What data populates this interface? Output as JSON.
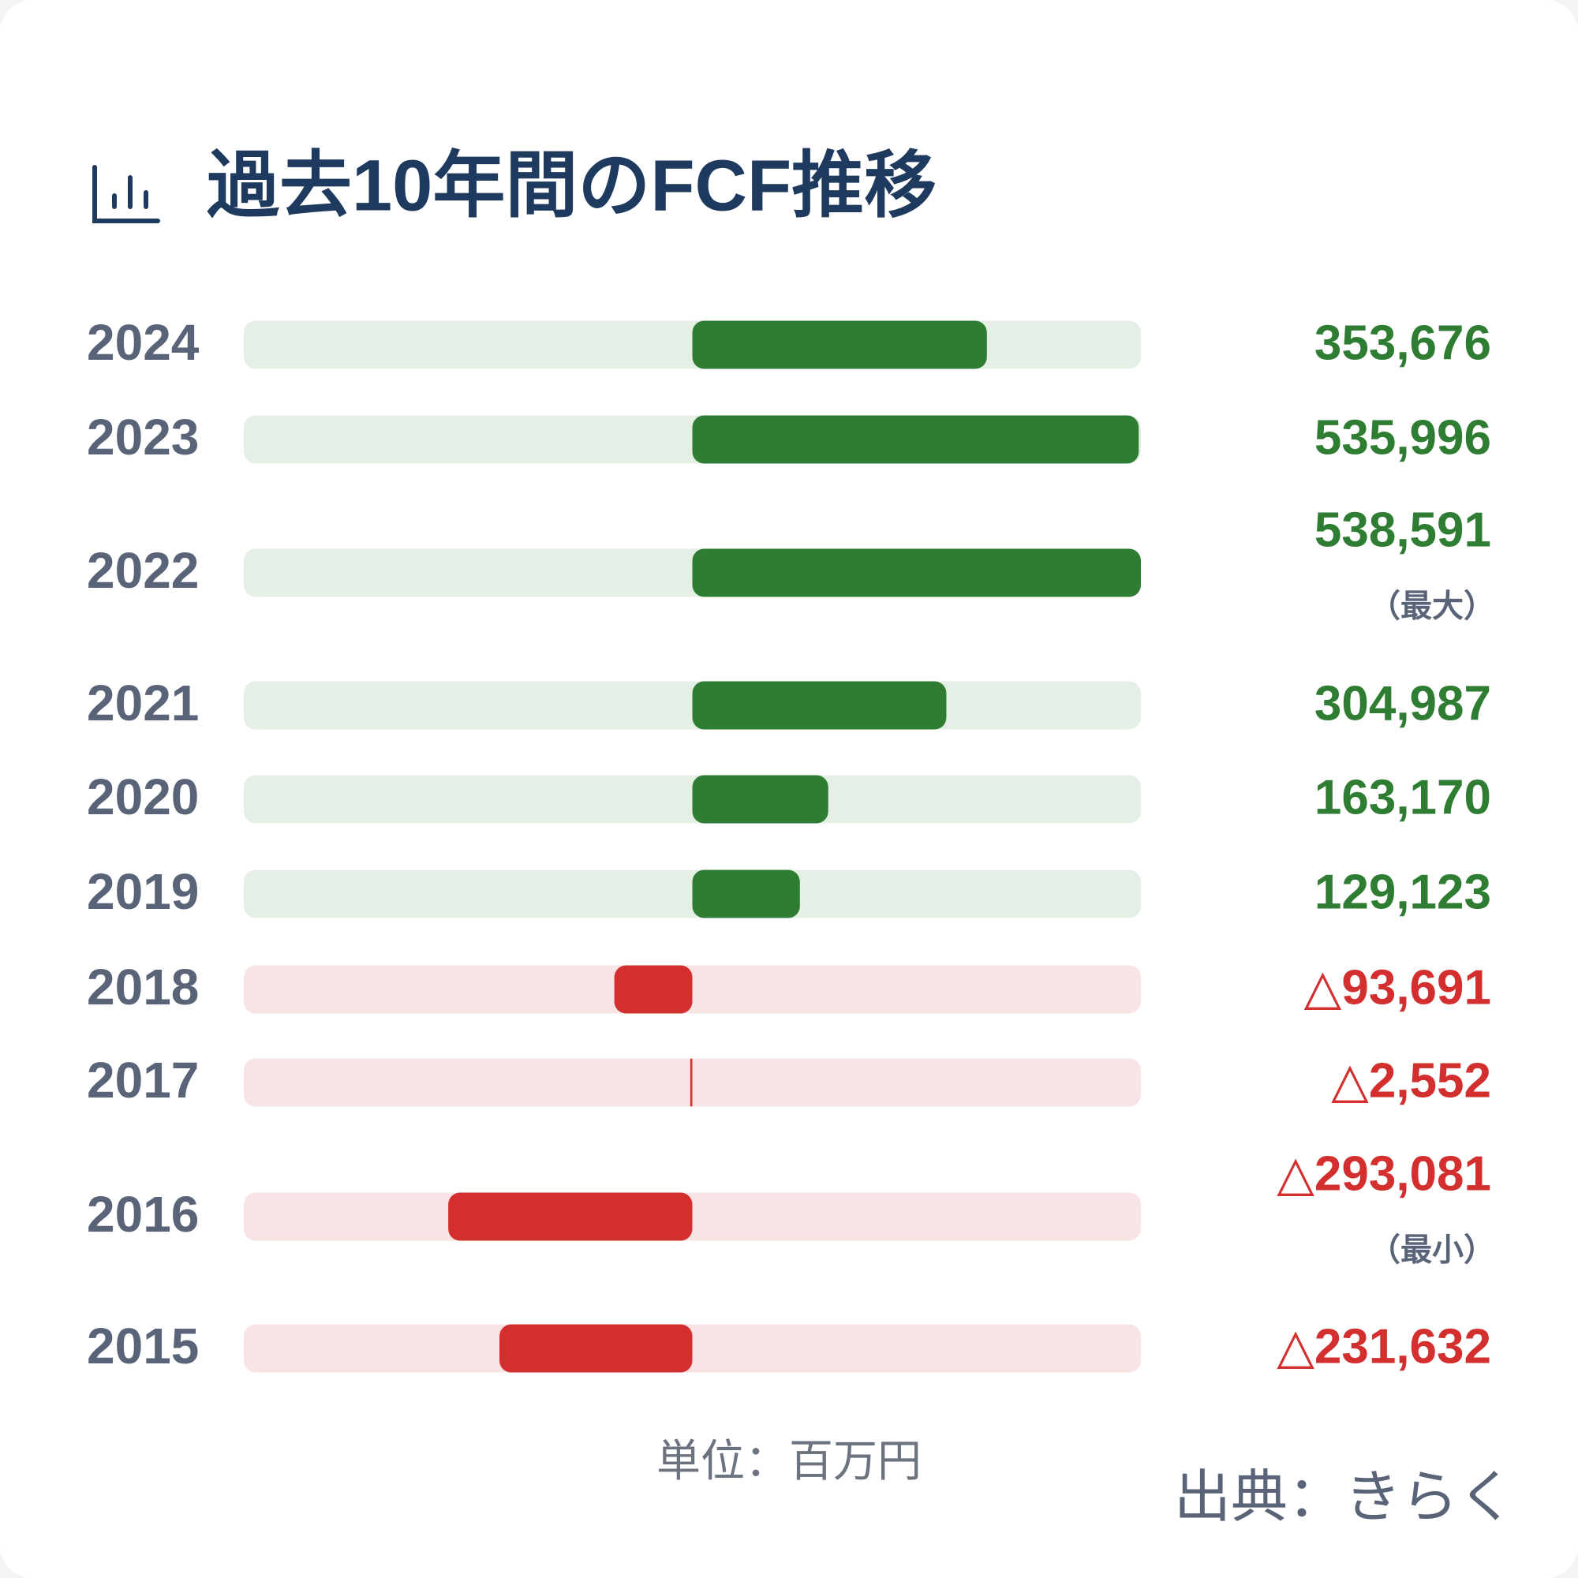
{
  "chart_data": {
    "type": "diverging-bar",
    "title": "過去10年間のFCF推移",
    "categories": [
      "2024",
      "2023",
      "2022",
      "2021",
      "2020",
      "2019",
      "2018",
      "2017",
      "2016",
      "2015"
    ],
    "values": [
      353676,
      535996,
      538591,
      304987,
      163170,
      129123,
      -93691,
      -2552,
      -293081,
      -231632
    ],
    "value_labels": [
      "353,676",
      "535,996",
      "538,591",
      "304,987",
      "163,170",
      "129,123",
      "△93,691",
      "△2,552",
      "△293,081",
      "△231,632"
    ],
    "value_notes": [
      null,
      null,
      "（最大）",
      null,
      null,
      null,
      null,
      null,
      "（最小）",
      null
    ],
    "xlim": [
      -538591,
      538591
    ],
    "positive_color": "#2e7d32",
    "negative_color": "#d32f2f",
    "unit": "単位：百万円",
    "source": "出典：きらく"
  }
}
